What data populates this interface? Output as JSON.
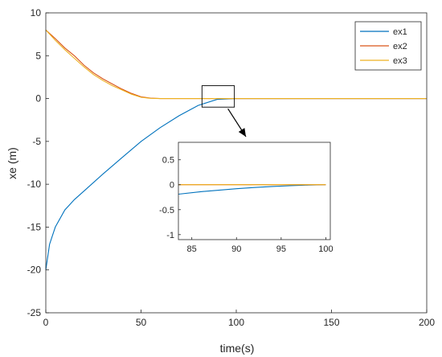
{
  "chart_data": {
    "type": "line",
    "xlabel": "time(s)",
    "ylabel": "xe (m)",
    "xlim": [
      0,
      200
    ],
    "ylim": [
      -25,
      10
    ],
    "x_ticks": [
      "0",
      "50",
      "100",
      "150",
      "200"
    ],
    "y_ticks": [
      "10",
      "5",
      "0",
      "-5",
      "-10",
      "-15",
      "-20",
      "-25"
    ],
    "grid": false,
    "legend_position": "top-right",
    "series": [
      {
        "name": "ex1",
        "color": "#0072BD",
        "x": [
          0,
          2,
          5,
          10,
          15,
          20,
          30,
          40,
          50,
          60,
          70,
          80,
          90,
          100,
          120,
          150,
          200
        ],
        "y": [
          -20,
          -17,
          -15,
          -13,
          -11.8,
          -10.8,
          -8.8,
          -6.9,
          -5.0,
          -3.4,
          -2.0,
          -0.8,
          -0.1,
          0,
          0,
          0,
          0
        ]
      },
      {
        "name": "ex2",
        "color": "#D95319",
        "x": [
          0,
          5,
          10,
          15,
          20,
          25,
          30,
          35,
          40,
          45,
          50,
          55,
          60,
          70,
          100,
          150,
          200
        ],
        "y": [
          8,
          7.0,
          5.9,
          5.0,
          3.9,
          3.0,
          2.3,
          1.7,
          1.1,
          0.6,
          0.2,
          0.05,
          0,
          0,
          0,
          0,
          0
        ]
      },
      {
        "name": "ex3",
        "color": "#EDB120",
        "x": [
          0,
          5,
          10,
          15,
          20,
          25,
          30,
          35,
          40,
          45,
          50,
          55,
          60,
          70,
          100,
          150,
          200
        ],
        "y": [
          8,
          6.8,
          5.7,
          4.7,
          3.7,
          2.8,
          2.1,
          1.5,
          1.0,
          0.5,
          0.15,
          0.03,
          0,
          0,
          0,
          0,
          0
        ]
      }
    ],
    "inset": {
      "xlim": [
        83.5,
        100.5
      ],
      "ylim": [
        -1.1,
        0.85
      ],
      "x_ticks": [
        "85",
        "90",
        "95",
        "100"
      ],
      "y_ticks": [
        "0.5",
        "0",
        "-0.5",
        "-1"
      ],
      "zoom_region": {
        "x": [
          82,
          99
        ],
        "y": [
          -1,
          1.5
        ]
      },
      "series": [
        {
          "name": "ex1",
          "color": "#0072BD",
          "x": [
            83.5,
            86,
            88,
            90,
            92,
            94,
            96,
            98,
            100
          ],
          "y": [
            -0.19,
            -0.14,
            -0.11,
            -0.08,
            -0.055,
            -0.035,
            -0.02,
            -0.008,
            0
          ]
        },
        {
          "name": "ex2",
          "color": "#D95319",
          "x": [
            83.5,
            100
          ],
          "y": [
            0,
            0
          ]
        },
        {
          "name": "ex3",
          "color": "#EDB120",
          "x": [
            83.5,
            100
          ],
          "y": [
            0,
            0
          ]
        }
      ]
    }
  }
}
